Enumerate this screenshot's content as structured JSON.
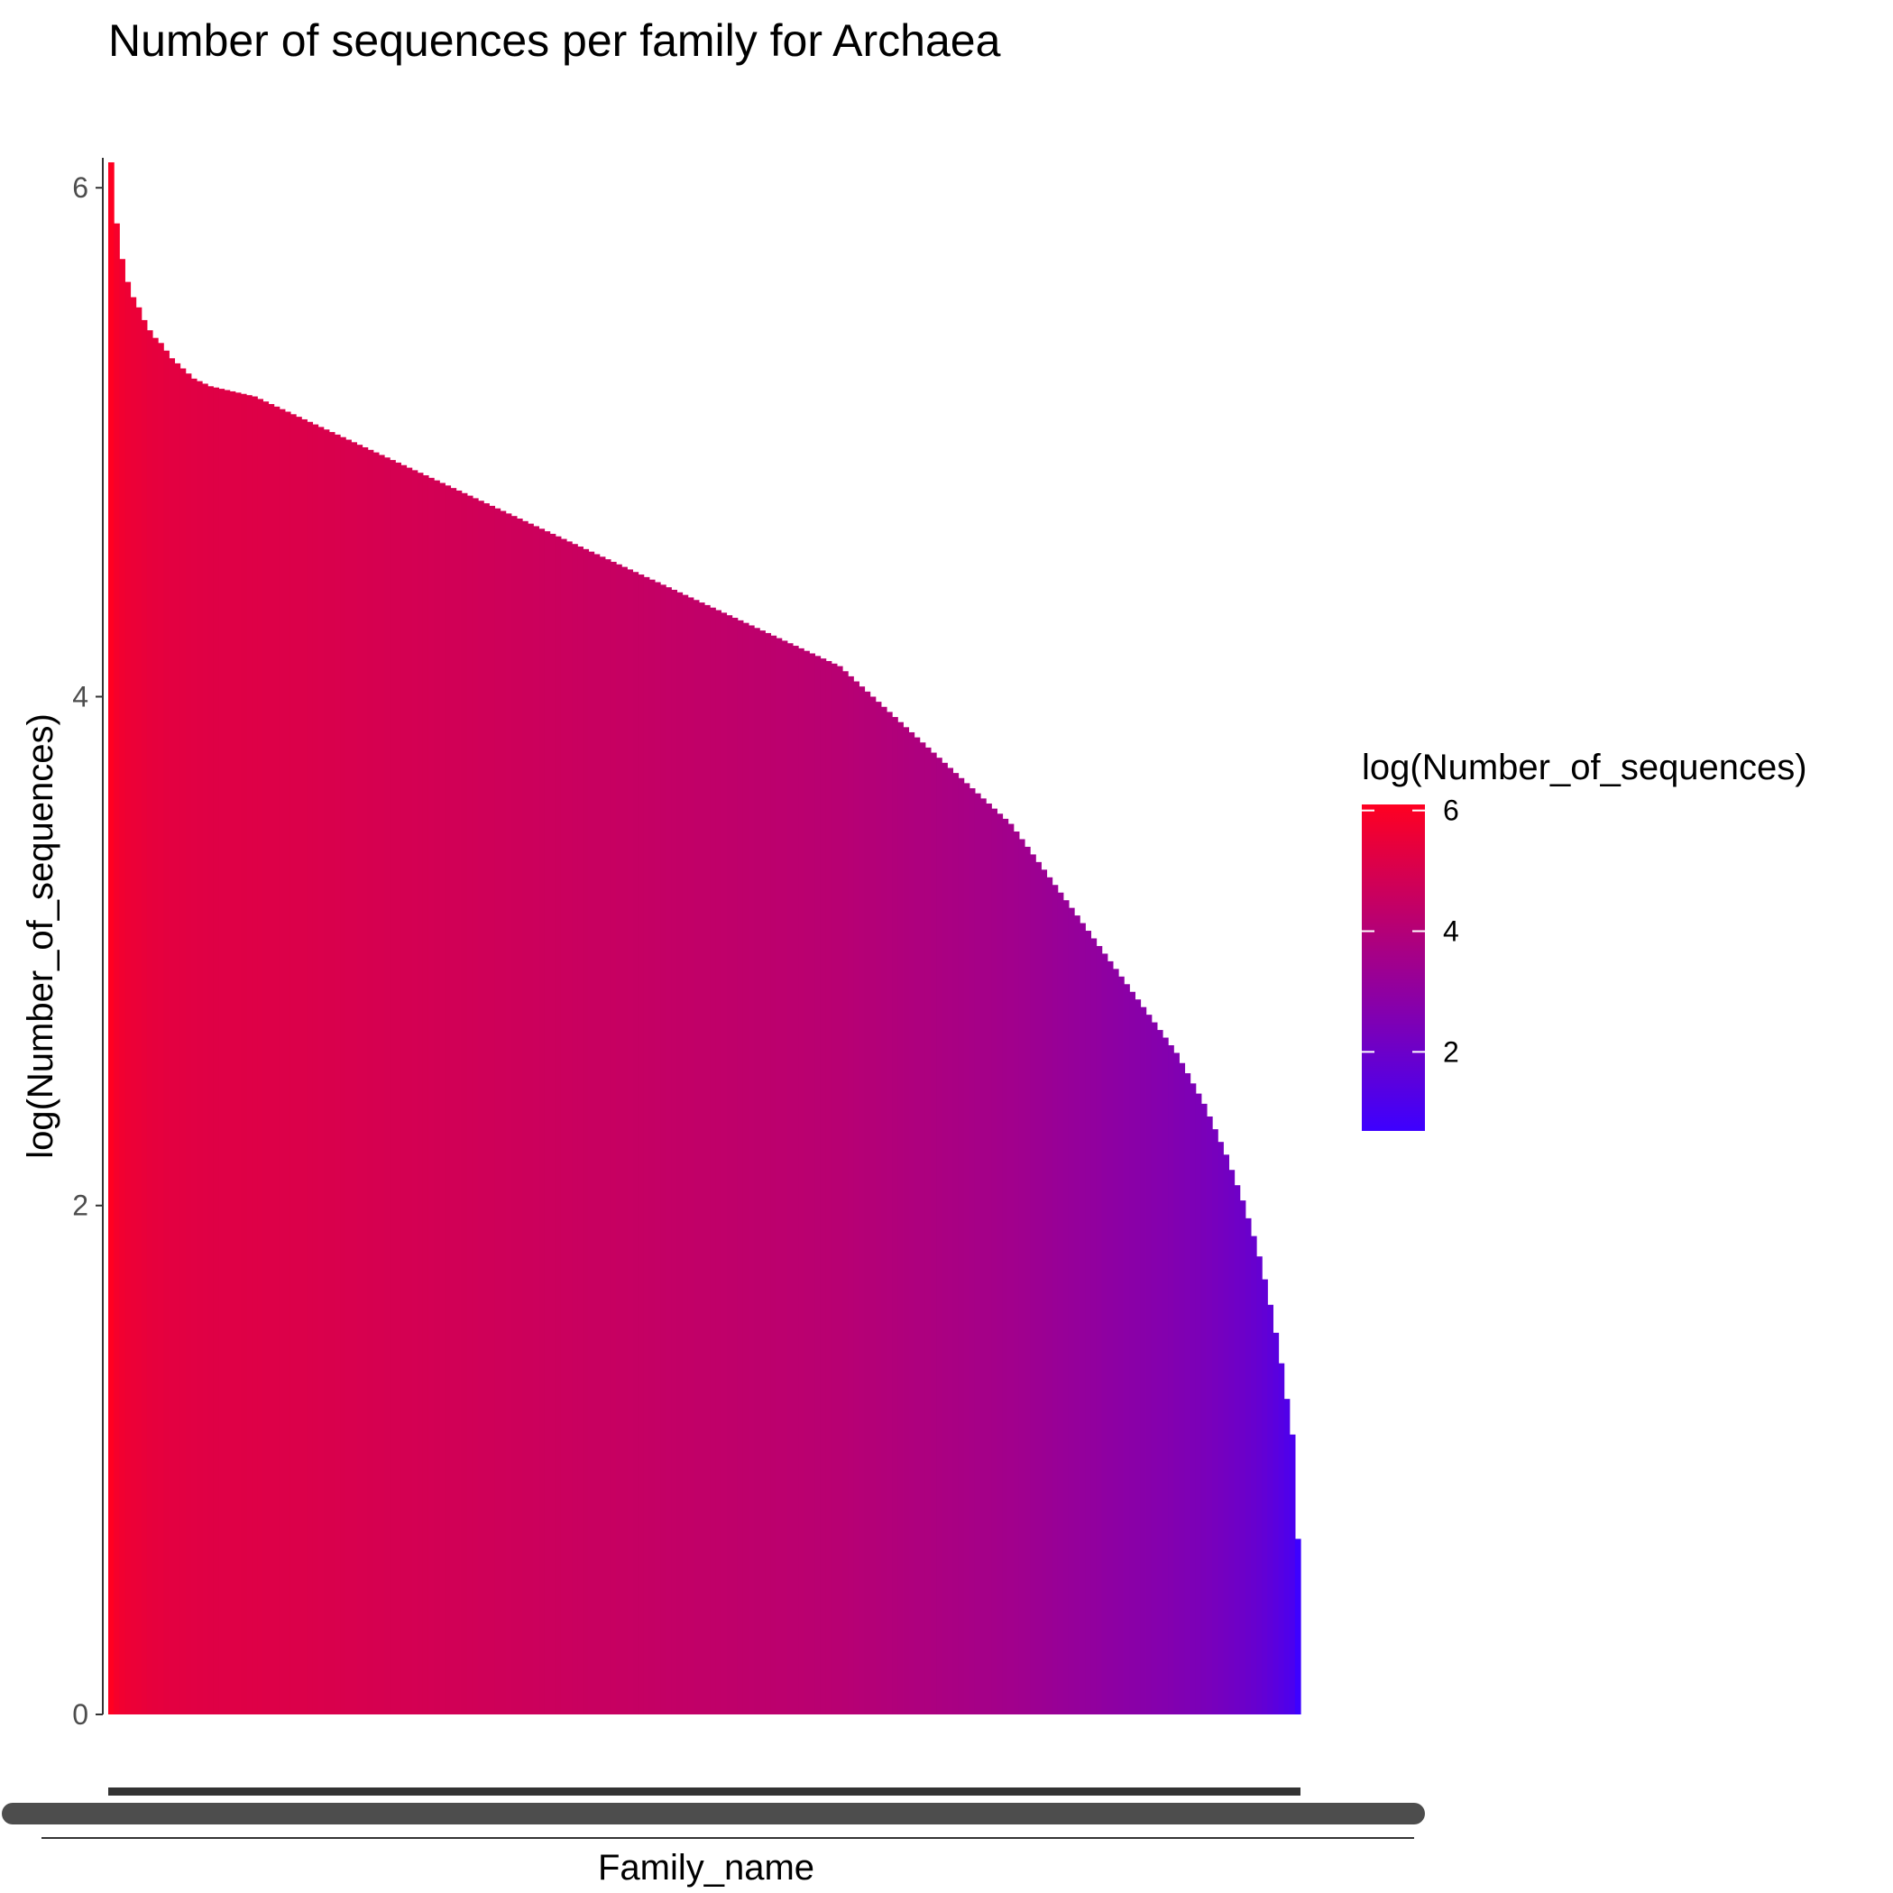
{
  "chart_data": {
    "type": "bar",
    "title": "Number of sequences per family for Archaea",
    "xlabel": "Family_name",
    "ylabel": "log(Number_of_sequences)",
    "ylim": [
      0,
      6.1
    ],
    "y_ticks": [
      {
        "value": 0,
        "label": "0"
      },
      {
        "value": 2,
        "label": "2"
      },
      {
        "value": 4,
        "label": "4"
      },
      {
        "value": 6,
        "label": "6"
      }
    ],
    "grid": false,
    "legend_position": "right",
    "fill_scale": {
      "low": "#3d00ff",
      "high": "#ff0021",
      "limits": [
        0.69,
        6.1
      ]
    },
    "legend": {
      "title": "log(Number_of_sequences)",
      "ticks": [
        {
          "value": 6,
          "label": "6"
        },
        {
          "value": 4,
          "label": "4"
        },
        {
          "value": 2,
          "label": "2"
        }
      ]
    },
    "series": [
      {
        "values": [
          6.1,
          5.86,
          5.72,
          5.63,
          5.57,
          5.53,
          5.48,
          5.44,
          5.41,
          5.39,
          5.36,
          5.33,
          5.31,
          5.29,
          5.27,
          5.25,
          5.24,
          5.23,
          5.22,
          5.215,
          5.21,
          5.205,
          5.2,
          5.195,
          5.19,
          5.185,
          5.18,
          5.17,
          5.16,
          5.15,
          5.14,
          5.13,
          5.12,
          5.11,
          5.1,
          5.09,
          5.08,
          5.07,
          5.06,
          5.05,
          5.04,
          5.03,
          5.02,
          5.01,
          5.0,
          4.99,
          4.98,
          4.97,
          4.96,
          4.95,
          4.94,
          4.93,
          4.92,
          4.91,
          4.9,
          4.89,
          4.88,
          4.87,
          4.86,
          4.85,
          4.84,
          4.83,
          4.82,
          4.81,
          4.8,
          4.79,
          4.78,
          4.77,
          4.76,
          4.75,
          4.74,
          4.73,
          4.72,
          4.71,
          4.7,
          4.69,
          4.68,
          4.67,
          4.66,
          4.65,
          4.64,
          4.63,
          4.62,
          4.61,
          4.6,
          4.59,
          4.58,
          4.57,
          4.56,
          4.55,
          4.54,
          4.53,
          4.52,
          4.51,
          4.5,
          4.49,
          4.48,
          4.47,
          4.46,
          4.45,
          4.44,
          4.43,
          4.42,
          4.41,
          4.4,
          4.39,
          4.38,
          4.37,
          4.36,
          4.35,
          4.34,
          4.33,
          4.32,
          4.31,
          4.3,
          4.29,
          4.28,
          4.27,
          4.26,
          4.25,
          4.24,
          4.23,
          4.22,
          4.21,
          4.2,
          4.19,
          4.18,
          4.17,
          4.16,
          4.15,
          4.14,
          4.13,
          4.12,
          4.1,
          4.08,
          4.06,
          4.04,
          4.02,
          4.0,
          3.98,
          3.96,
          3.94,
          3.92,
          3.9,
          3.88,
          3.86,
          3.84,
          3.82,
          3.8,
          3.78,
          3.76,
          3.74,
          3.72,
          3.7,
          3.68,
          3.66,
          3.64,
          3.62,
          3.6,
          3.58,
          3.56,
          3.54,
          3.52,
          3.5,
          3.47,
          3.44,
          3.41,
          3.38,
          3.35,
          3.32,
          3.29,
          3.26,
          3.23,
          3.2,
          3.17,
          3.14,
          3.11,
          3.08,
          3.05,
          3.02,
          2.99,
          2.96,
          2.93,
          2.9,
          2.87,
          2.84,
          2.81,
          2.78,
          2.75,
          2.72,
          2.69,
          2.66,
          2.63,
          2.6,
          2.56,
          2.52,
          2.48,
          2.44,
          2.4,
          2.35,
          2.3,
          2.25,
          2.2,
          2.14,
          2.08,
          2.02,
          1.95,
          1.88,
          1.8,
          1.71,
          1.61,
          1.5,
          1.38,
          1.24,
          1.1,
          0.69
        ]
      }
    ]
  }
}
